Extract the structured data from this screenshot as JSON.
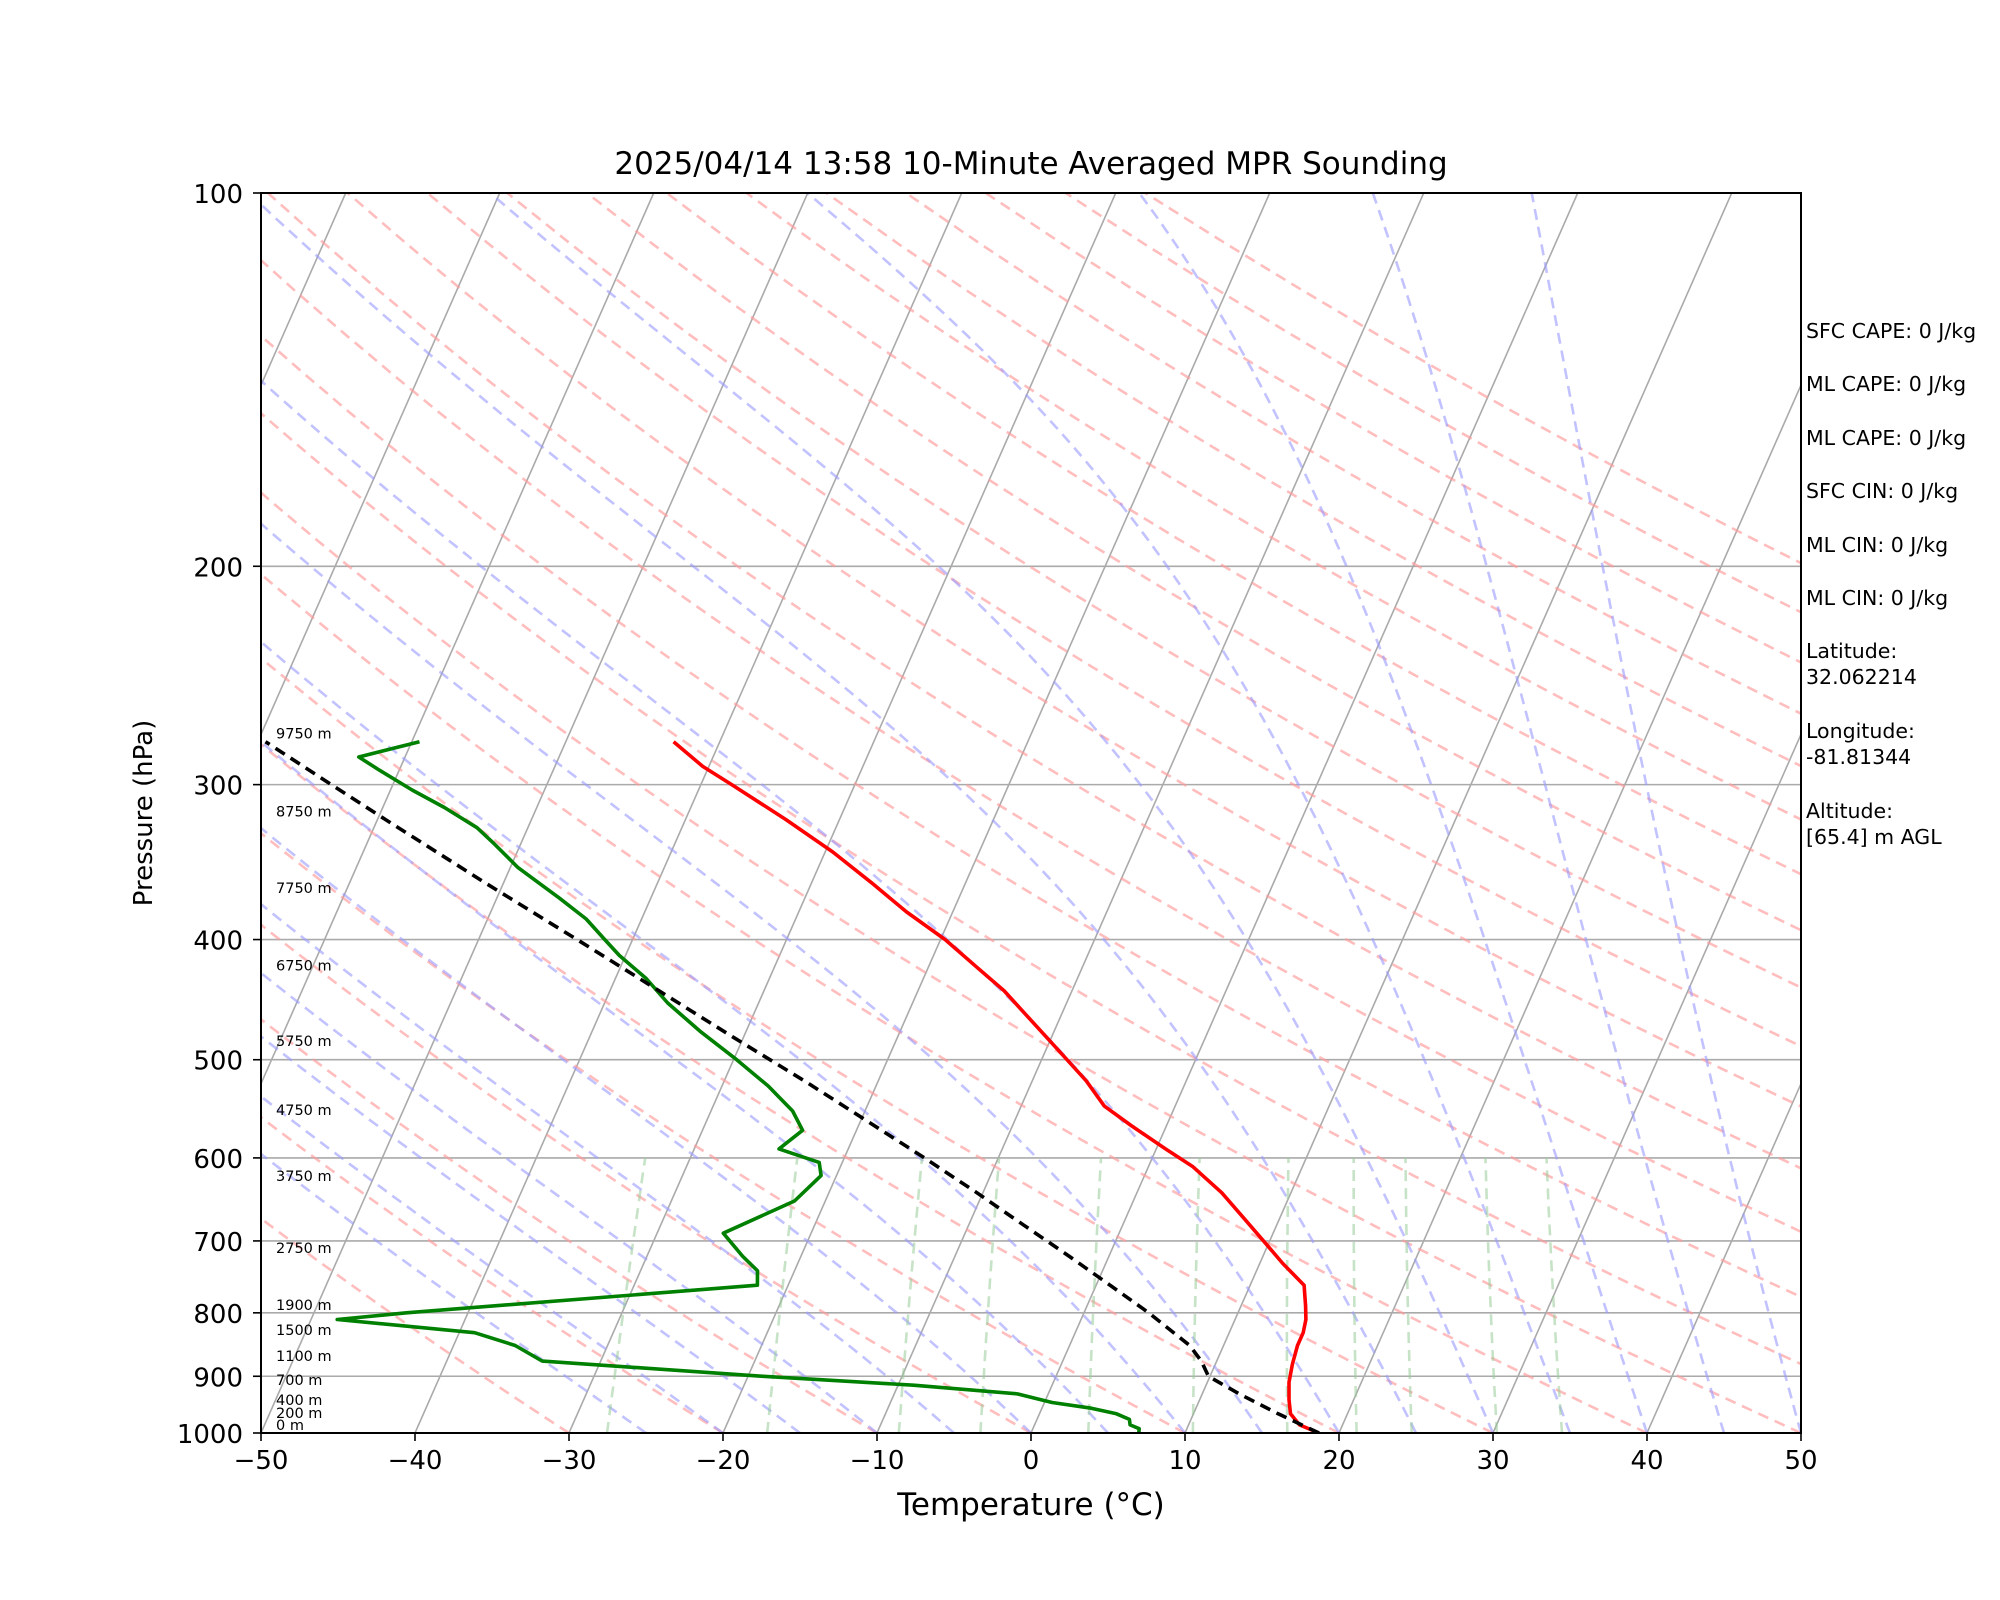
{
  "chart_data": {
    "type": "line",
    "title": "2025/04/14 13:58 10-Minute Averaged MPR Sounding",
    "xlabel": "Temperature (°C)",
    "ylabel": "Pressure (hPa)",
    "xlim": [
      -50,
      50
    ],
    "ylim": [
      1000,
      100
    ],
    "y_scale": "log",
    "grid": true,
    "x_ticks": [
      "−50",
      "−40",
      "−30",
      "−20",
      "−10",
      "0",
      "10",
      "20",
      "30",
      "40",
      "50"
    ],
    "y_ticks": [
      "100",
      "200",
      "300",
      "400",
      "500",
      "600",
      "700",
      "800",
      "900",
      "1000"
    ],
    "height_labels": [
      {
        "p": 1000,
        "text": "0 m"
      },
      {
        "p": 978,
        "text": "200 m"
      },
      {
        "p": 955,
        "text": "400 m"
      },
      {
        "p": 920,
        "text": "700 m"
      },
      {
        "p": 880,
        "text": "1100 m"
      },
      {
        "p": 838,
        "text": "1500 m"
      },
      {
        "p": 800,
        "text": "1900 m"
      },
      {
        "p": 720,
        "text": "2750 m"
      },
      {
        "p": 630,
        "text": "3750 m"
      },
      {
        "p": 557,
        "text": "4750 m"
      },
      {
        "p": 490,
        "text": "5750 m"
      },
      {
        "p": 426,
        "text": "6750 m"
      },
      {
        "p": 369,
        "text": "7750 m"
      },
      {
        "p": 320,
        "text": "8750 m"
      },
      {
        "p": 277,
        "text": "9750 m"
      }
    ],
    "series": [
      {
        "color": "#ff0000",
        "style": "solid",
        "points": [
          [
            1000,
            18.7
          ],
          [
            985,
            17.2
          ],
          [
            965,
            16.3
          ],
          [
            940,
            15.8
          ],
          [
            910,
            15.3
          ],
          [
            880,
            15.0
          ],
          [
            850,
            14.8
          ],
          [
            830,
            14.8
          ],
          [
            810,
            14.6
          ],
          [
            790,
            14.2
          ],
          [
            760,
            13.5
          ],
          [
            730,
            11.5
          ],
          [
            700,
            9.6
          ],
          [
            670,
            7.6
          ],
          [
            640,
            5.5
          ],
          [
            610,
            2.9
          ],
          [
            590,
            0.6
          ],
          [
            565,
            -2.3
          ],
          [
            545,
            -4.6
          ],
          [
            520,
            -6.5
          ],
          [
            490,
            -9.3
          ],
          [
            460,
            -12.3
          ],
          [
            440,
            -14.4
          ],
          [
            420,
            -17.0
          ],
          [
            400,
            -19.7
          ],
          [
            380,
            -23.0
          ],
          [
            360,
            -26.1
          ],
          [
            340,
            -29.5
          ],
          [
            320,
            -33.5
          ],
          [
            300,
            -38.0
          ],
          [
            290,
            -40.4
          ],
          [
            277,
            -43.0
          ]
        ]
      },
      {
        "color": "#008000",
        "style": "solid",
        "points": [
          [
            1000,
            7.0
          ],
          [
            992,
            6.9
          ],
          [
            985,
            6.2
          ],
          [
            975,
            6.0
          ],
          [
            965,
            5.0
          ],
          [
            955,
            3.2
          ],
          [
            945,
            0.5
          ],
          [
            930,
            -2.0
          ],
          [
            915,
            -9.0
          ],
          [
            900,
            -19.0
          ],
          [
            875,
            -33.8
          ],
          [
            850,
            -36.0
          ],
          [
            830,
            -39.0
          ],
          [
            810,
            -48.3
          ],
          [
            800,
            -44.0
          ],
          [
            760,
            -22.0
          ],
          [
            740,
            -22.4
          ],
          [
            720,
            -23.8
          ],
          [
            690,
            -25.7
          ],
          [
            650,
            -22.0
          ],
          [
            620,
            -21.0
          ],
          [
            605,
            -21.5
          ],
          [
            590,
            -24.5
          ],
          [
            570,
            -23.5
          ],
          [
            550,
            -24.7
          ],
          [
            525,
            -27.0
          ],
          [
            500,
            -29.8
          ],
          [
            475,
            -32.9
          ],
          [
            450,
            -35.9
          ],
          [
            430,
            -38.0
          ],
          [
            412,
            -40.4
          ],
          [
            400,
            -41.8
          ],
          [
            385,
            -43.6
          ],
          [
            370,
            -46.0
          ],
          [
            350,
            -49.5
          ],
          [
            335,
            -51.7
          ],
          [
            325,
            -53.3
          ],
          [
            313,
            -56.0
          ],
          [
            303,
            -58.6
          ],
          [
            292,
            -61.3
          ],
          [
            285,
            -63.0
          ],
          [
            277,
            -59.5
          ]
        ]
      },
      {
        "color": "#000000",
        "style": "dashed",
        "points": [
          [
            1000,
            18.7
          ],
          [
            965,
            15.5
          ],
          [
            930,
            12.4
          ],
          [
            900,
            9.9
          ],
          [
            875,
            9.0
          ],
          [
            850,
            7.8
          ],
          [
            800,
            4.2
          ],
          [
            760,
            0.9
          ],
          [
            720,
            -2.6
          ],
          [
            680,
            -6.4
          ],
          [
            640,
            -10.4
          ],
          [
            600,
            -14.8
          ],
          [
            560,
            -19.6
          ],
          [
            520,
            -24.8
          ],
          [
            480,
            -30.6
          ],
          [
            440,
            -36.8
          ],
          [
            400,
            -43.6
          ],
          [
            360,
            -51.2
          ],
          [
            320,
            -59.5
          ],
          [
            300,
            -64.0
          ],
          [
            277,
            -69.5
          ]
        ]
      }
    ]
  },
  "annotations": [
    "SFC CAPE: 0 J/kg",
    "ML CAPE: 0 J/kg",
    "ML CAPE: 0 J/kg",
    "SFC CIN: 0 J/kg",
    "ML CIN: 0 J/kg",
    "ML CIN: 0 J/kg",
    "Latitude:\n32.062214",
    "Longitude:\n-81.81344",
    "Altitude:\n[65.4] m AGL"
  ]
}
